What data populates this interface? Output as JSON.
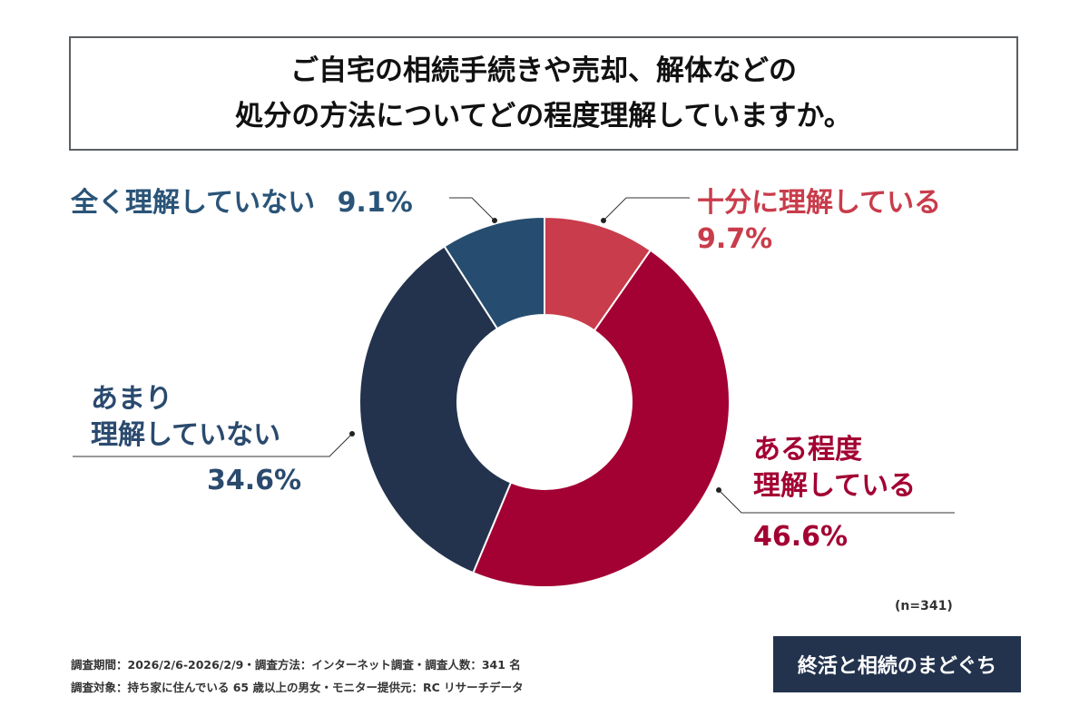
{
  "title": {
    "line1": "ご自宅の相続手続きや売却、解体などの",
    "line2": "処分の方法についてどの程度理解していますか。"
  },
  "chart_data": {
    "type": "pie",
    "donut": true,
    "start": "top",
    "direction": "clockwise",
    "slices": [
      {
        "label": "十分に理解している",
        "label_lines": [
          "十分に理解している"
        ],
        "value": 9.7,
        "value_text": "9.7%",
        "color": "#c93c4b"
      },
      {
        "label": "ある程度理解している",
        "label_lines": [
          "ある程度",
          "理解している"
        ],
        "value": 46.6,
        "value_text": "46.6%",
        "color": "#a30033"
      },
      {
        "label": "あまり理解していない",
        "label_lines": [
          "あまり",
          "理解していない"
        ],
        "value": 34.6,
        "value_text": "34.6%",
        "color": "#23334d"
      },
      {
        "label": "全く理解していない",
        "label_lines": [
          "全く理解していない"
        ],
        "value": 9.1,
        "value_text": "9.1%",
        "color": "#264d70"
      }
    ],
    "label_colors": [
      "#c93c4b",
      "#a30033",
      "#2a4a6e",
      "#2a5478"
    ]
  },
  "sample": "(n=341)",
  "footer": {
    "line1": "調査期間：2026/2/6-2026/2/9・調査方法：インターネット調査・調査人数：341 名",
    "line2": "調査対象：持ち家に住んでいる 65 歳以上の男女・モニター提供元：RC リサーチデータ"
  },
  "logo": "終活と相続のまどぐち"
}
